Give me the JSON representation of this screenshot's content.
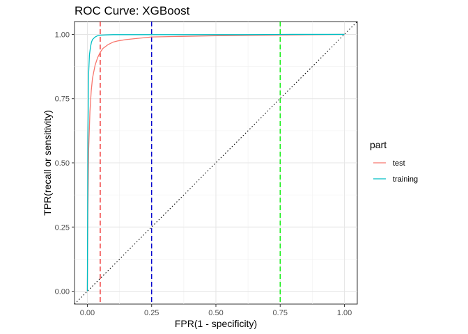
{
  "chart_data": {
    "type": "line",
    "title": "ROC Curve: XGBoost",
    "xlabel": "FPR(1 - specificity)",
    "ylabel": "TPR(recall or sensitivity)",
    "xlim": [
      -0.05,
      1.05
    ],
    "ylim": [
      -0.05,
      1.05
    ],
    "x_ticks": [
      0.0,
      0.25,
      0.5,
      0.75,
      1.0
    ],
    "x_tick_labels": [
      "0.00",
      "0.25",
      "0.50",
      "0.75",
      "1.00"
    ],
    "y_ticks": [
      0.0,
      0.25,
      0.5,
      0.75,
      1.0
    ],
    "y_tick_labels": [
      "0.00",
      "0.25",
      "0.50",
      "0.75",
      "1.00"
    ],
    "grid": true,
    "legend": {
      "title": "part",
      "position": "right",
      "entries": [
        {
          "label": "test",
          "color": "#F8766D"
        },
        {
          "label": "training",
          "color": "#00BFC4"
        }
      ]
    },
    "series": [
      {
        "name": "test",
        "color": "#F8766D",
        "x": [
          0.0,
          0.002,
          0.005,
          0.01,
          0.015,
          0.02,
          0.03,
          0.04,
          0.05,
          0.06,
          0.08,
          0.1,
          0.12,
          0.15,
          0.2,
          0.25,
          0.3,
          0.4,
          0.5,
          0.6,
          0.7,
          0.8,
          0.9,
          1.0
        ],
        "y": [
          0.0,
          0.3,
          0.55,
          0.7,
          0.78,
          0.83,
          0.88,
          0.91,
          0.93,
          0.945,
          0.96,
          0.97,
          0.975,
          0.98,
          0.985,
          0.99,
          0.991,
          0.993,
          0.995,
          0.996,
          0.997,
          0.998,
          0.999,
          1.0
        ]
      },
      {
        "name": "training",
        "color": "#00BFC4",
        "x": [
          0.0,
          0.002,
          0.005,
          0.008,
          0.012,
          0.016,
          0.02,
          0.03,
          0.04,
          0.05,
          0.07,
          0.1,
          0.2,
          0.4,
          0.6,
          0.8,
          1.0
        ],
        "y": [
          0.0,
          0.6,
          0.85,
          0.92,
          0.95,
          0.97,
          0.98,
          0.99,
          0.995,
          0.997,
          0.998,
          0.999,
          0.999,
          0.999,
          0.999,
          1.0,
          1.0
        ]
      }
    ],
    "reference_lines": [
      {
        "type": "diagonal",
        "style": "dotted",
        "color": "#000000"
      },
      {
        "type": "vline",
        "x": 0.05,
        "style": "dashed",
        "color": "#EE2C2C"
      },
      {
        "type": "vline",
        "x": 0.25,
        "style": "dashed",
        "color": "#0000CD"
      },
      {
        "type": "vline",
        "x": 0.75,
        "style": "dashed",
        "color": "#00EE00"
      }
    ]
  }
}
